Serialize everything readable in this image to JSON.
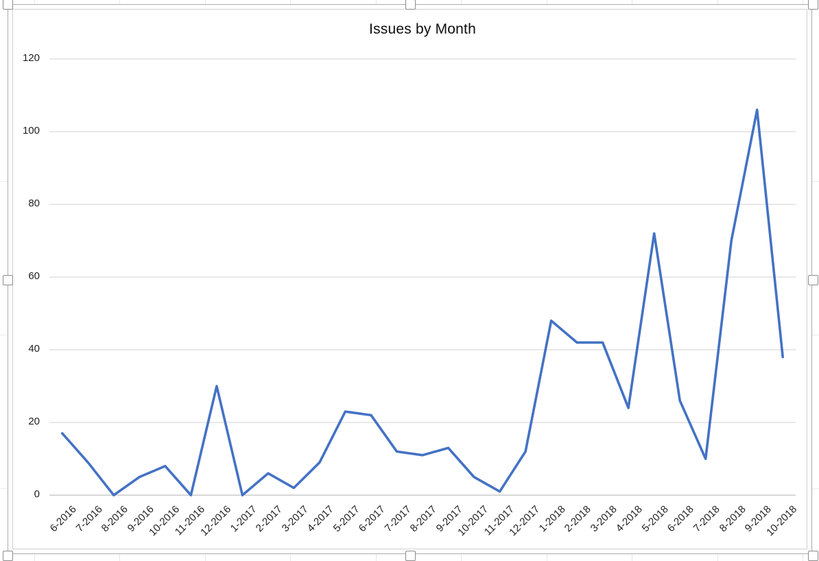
{
  "chart_data": {
    "type": "line",
    "title": "Issues by Month",
    "categories": [
      "6-2016",
      "7-2016",
      "8-2016",
      "9-2016",
      "10-2016",
      "11-2016",
      "12-2016",
      "1-2017",
      "2-2017",
      "3-2017",
      "4-2017",
      "5-2017",
      "6-2017",
      "7-2017",
      "8-2017",
      "9-2017",
      "10-2017",
      "11-2017",
      "12-2017",
      "1-2018",
      "2-2018",
      "3-2018",
      "4-2018",
      "5-2018",
      "6-2018",
      "7-2018",
      "8-2018",
      "9-2018",
      "10-2018"
    ],
    "values": [
      17,
      9,
      0,
      5,
      8,
      0,
      30,
      0,
      6,
      2,
      9,
      23,
      22,
      12,
      11,
      13,
      5,
      1,
      12,
      48,
      42,
      42,
      24,
      72,
      26,
      10,
      70,
      106,
      38
    ],
    "xlabel": "",
    "ylabel": "",
    "ylim": [
      0,
      120
    ],
    "yticks": [
      0,
      20,
      40,
      60,
      80,
      100,
      120
    ],
    "grid": true,
    "legend_position": "none",
    "x_label_rotation_deg": 45,
    "colors": {
      "series_line": "#4472C4",
      "gridline": "#d9d9d9",
      "axis_line": "#bfbfbf",
      "text": "#1f1f1f",
      "chart_background": "#ffffff"
    }
  },
  "chart_object": {
    "state": "selected",
    "selection_handles": [
      "top-left",
      "top-center",
      "top-right",
      "middle-left",
      "middle-right",
      "bottom-left",
      "bottom-center",
      "bottom-right"
    ]
  }
}
